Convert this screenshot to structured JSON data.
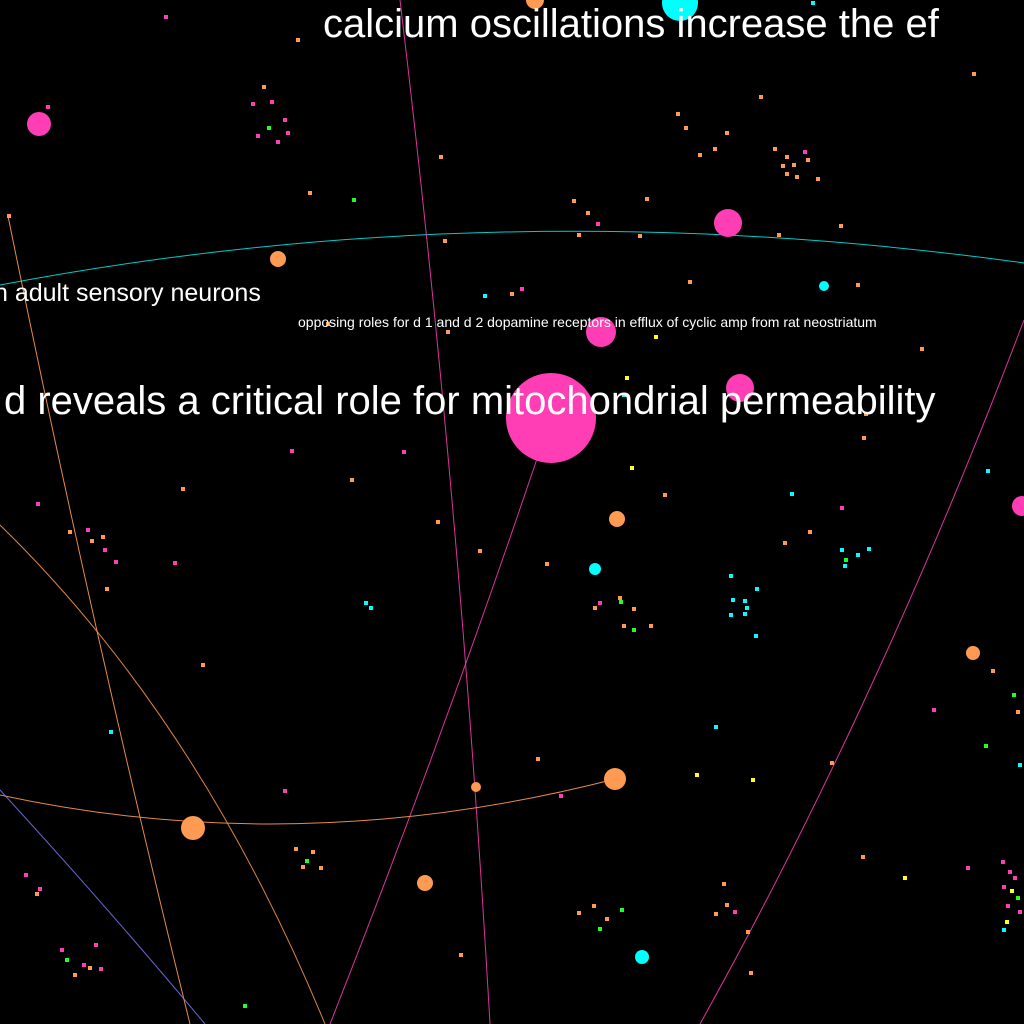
{
  "colors": {
    "background": "#000000",
    "pink": "#ff3eb5",
    "orange": "#ff9a52",
    "cyan": "#00ffff",
    "green": "#22ff22",
    "yellow": "#ffff22",
    "text": "#ffffff",
    "blue": "#8080ff"
  },
  "labels": {
    "top": "calcium oscillations increase the ef",
    "left": "n adult sensory neurons",
    "small": "opposing roles for d 1 and d 2 dopamine receptors in efflux of cyclic amp from rat neostriatum",
    "middle": "d reveals a critical role for mitochondrial permeability"
  }
}
